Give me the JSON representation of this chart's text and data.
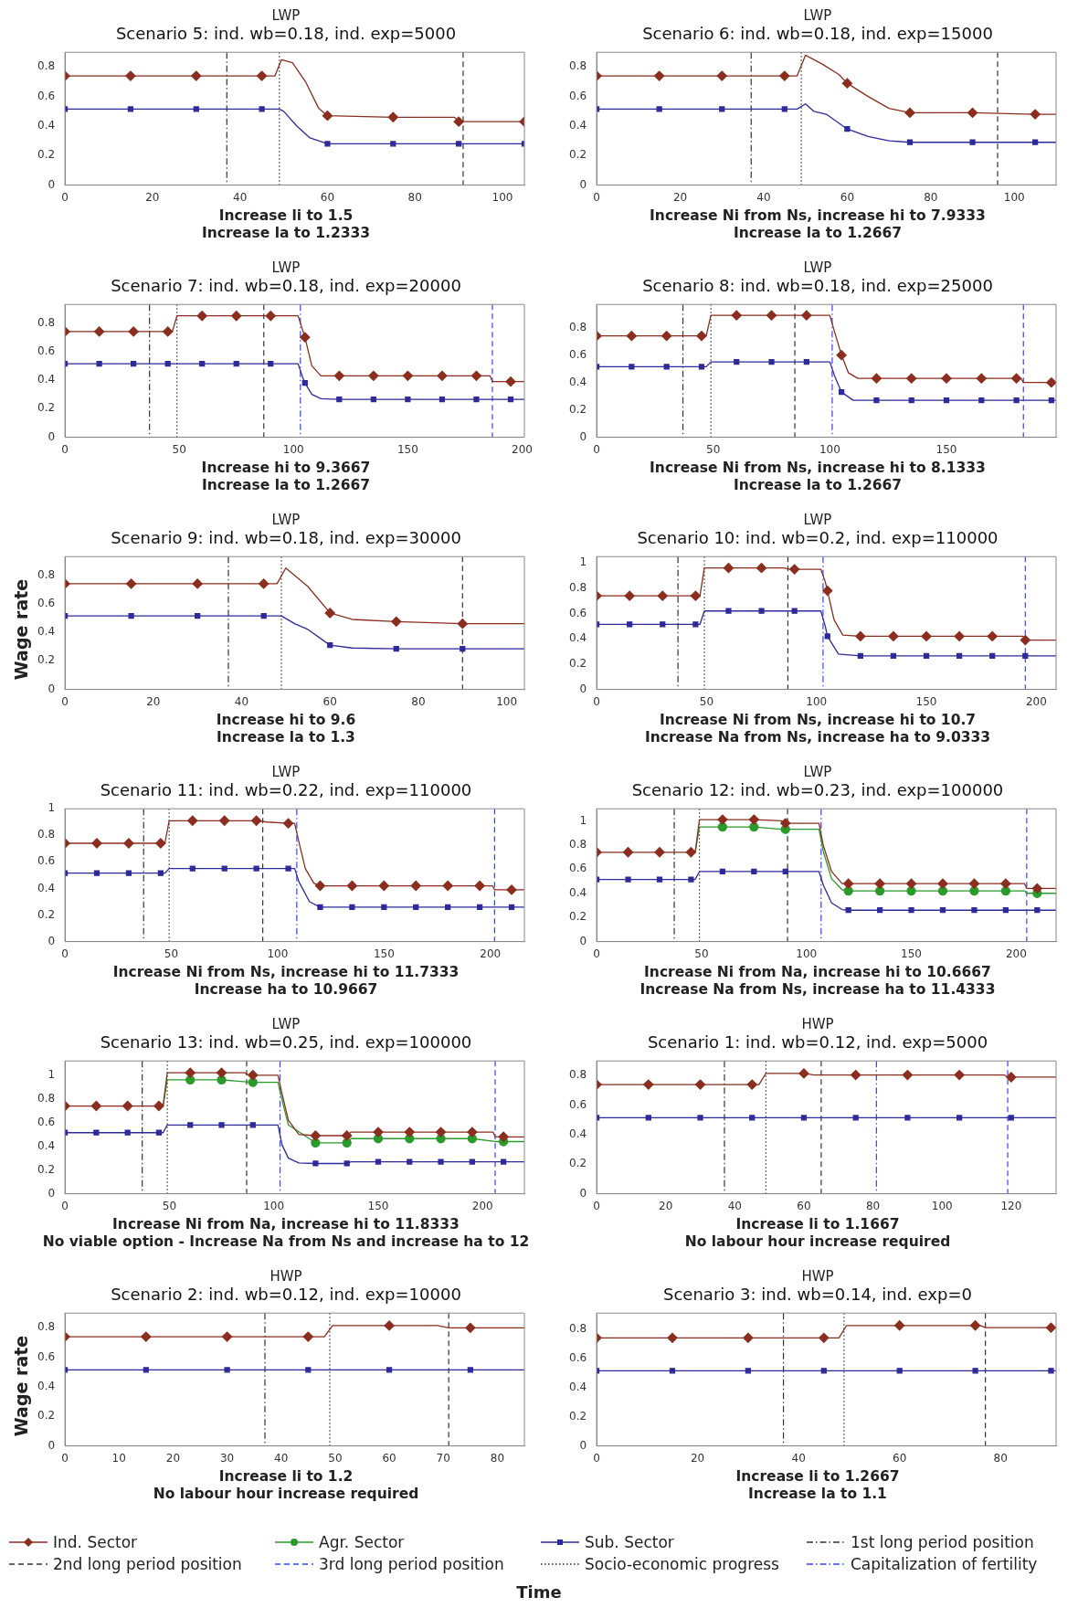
{
  "chart_data": [
    {
      "type": "line",
      "title": "LWP",
      "subtitle": "Scenario 5: ind. wb=0.18, ind. exp=5000",
      "annotations": [
        "Increase li to 1.5",
        "Increase la to 1.2333"
      ],
      "xlim": [
        0,
        105
      ],
      "xticks": [
        0,
        20,
        40,
        60,
        80,
        100
      ],
      "ylim": [
        0,
        0.9
      ],
      "yticks": [
        0,
        0.2,
        0.4,
        0.6,
        0.8
      ],
      "grid": false,
      "legend": "bottom",
      "series": [
        {
          "name": "Ind. Sector",
          "color": "#8b2e1f",
          "marker": "diamond",
          "x": [
            0,
            15,
            30,
            45,
            48,
            49.5,
            52,
            55,
            58,
            60,
            75,
            89,
            90,
            105
          ],
          "values": [
            0.74,
            0.74,
            0.74,
            0.74,
            0.74,
            0.85,
            0.83,
            0.7,
            0.52,
            0.47,
            0.46,
            0.46,
            0.43,
            0.43
          ]
        },
        {
          "name": "Sub. Sector",
          "color": "#2e2a9a",
          "marker": "square",
          "x": [
            0,
            15,
            30,
            45,
            49,
            50,
            53,
            56,
            60,
            75,
            90,
            105
          ],
          "values": [
            0.515,
            0.515,
            0.515,
            0.515,
            0.515,
            0.5,
            0.4,
            0.32,
            0.28,
            0.28,
            0.28,
            0.28
          ]
        }
      ],
      "ref_lines": [
        {
          "axis": "x",
          "value": 37,
          "color": "#333333",
          "line_style": "dashdot"
        },
        {
          "axis": "x",
          "value": 91,
          "color": "#333333",
          "line_style": "dashed"
        },
        {
          "axis": "x",
          "value": 49,
          "color": "#333333",
          "line_style": "dotted"
        }
      ]
    },
    {
      "type": "line",
      "title": "LWP",
      "subtitle": "Scenario 6: ind. wb=0.18, ind. exp=15000",
      "annotations": [
        "Increase Ni from Ns, increase hi to 7.9333",
        "Increase la to 1.2667"
      ],
      "xlim": [
        0,
        110
      ],
      "xticks": [
        0,
        20,
        40,
        60,
        80,
        100
      ],
      "ylim": [
        0,
        0.9
      ],
      "yticks": [
        0,
        0.2,
        0.4,
        0.6,
        0.8
      ],
      "grid": false,
      "series": [
        {
          "name": "Ind. Sector",
          "color": "#8b2e1f",
          "marker": "diamond",
          "x": [
            0,
            15,
            30,
            45,
            48,
            50,
            54,
            58,
            60,
            65,
            70,
            75,
            90,
            105,
            110
          ],
          "values": [
            0.74,
            0.74,
            0.74,
            0.74,
            0.74,
            0.88,
            0.82,
            0.75,
            0.69,
            0.6,
            0.52,
            0.49,
            0.49,
            0.48,
            0.48
          ]
        },
        {
          "name": "Sub. Sector",
          "color": "#2e2a9a",
          "marker": "square",
          "x": [
            0,
            15,
            30,
            45,
            48,
            50,
            52,
            55,
            58,
            60,
            65,
            70,
            75,
            90,
            105,
            110
          ],
          "values": [
            0.515,
            0.515,
            0.515,
            0.515,
            0.515,
            0.55,
            0.5,
            0.48,
            0.42,
            0.38,
            0.33,
            0.3,
            0.29,
            0.29,
            0.29,
            0.29
          ]
        }
      ],
      "ref_lines": [
        {
          "axis": "x",
          "value": 37,
          "color": "#333333",
          "line_style": "dashdot"
        },
        {
          "axis": "x",
          "value": 96,
          "color": "#333333",
          "line_style": "dashed"
        },
        {
          "axis": "x",
          "value": 49,
          "color": "#333333",
          "line_style": "dotted"
        }
      ]
    },
    {
      "type": "line",
      "title": "LWP",
      "subtitle": "Scenario 7: ind. wb=0.18, ind. exp=20000",
      "annotations": [
        "Increase hi to 9.3667",
        "Increase la to 1.2667"
      ],
      "xlim": [
        0,
        201
      ],
      "xticks": [
        0,
        50,
        100,
        150,
        200
      ],
      "ylim": [
        0,
        0.93
      ],
      "yticks": [
        0,
        0.2,
        0.4,
        0.6,
        0.8
      ],
      "grid": false,
      "legend": "bottom",
      "series": [
        {
          "name": "Ind. Sector",
          "color": "#8b2e1f",
          "marker": "diamond",
          "x": [
            0,
            15,
            30,
            45,
            47,
            49,
            60,
            75,
            90,
            102,
            104,
            105,
            108,
            112,
            120,
            135,
            150,
            165,
            180,
            186,
            187,
            195,
            201
          ],
          "values": [
            0.74,
            0.74,
            0.74,
            0.74,
            0.74,
            0.85,
            0.85,
            0.85,
            0.85,
            0.85,
            0.75,
            0.7,
            0.5,
            0.43,
            0.43,
            0.43,
            0.43,
            0.43,
            0.43,
            0.43,
            0.39,
            0.39,
            0.39
          ]
        },
        {
          "name": "Sub. Sector",
          "color": "#2e2a9a",
          "marker": "square",
          "x": [
            0,
            15,
            30,
            45,
            60,
            75,
            90,
            102,
            104,
            105,
            108,
            112,
            120,
            135,
            150,
            165,
            180,
            195,
            201
          ],
          "values": [
            0.515,
            0.515,
            0.515,
            0.515,
            0.515,
            0.515,
            0.515,
            0.515,
            0.42,
            0.38,
            0.3,
            0.27,
            0.265,
            0.265,
            0.265,
            0.265,
            0.265,
            0.265,
            0.265
          ]
        }
      ],
      "ref_lines": [
        {
          "axis": "x",
          "value": 37,
          "label": "1st long period position",
          "color": "#333333",
          "line_style": "dashdot"
        },
        {
          "axis": "x",
          "value": 87,
          "label": "2nd long period position",
          "color": "#333333",
          "line_style": "dashed"
        },
        {
          "axis": "x",
          "value": 187,
          "label": "3rd long period position",
          "color": "#3344ff",
          "line_style": "dashed"
        },
        {
          "axis": "x",
          "value": 49,
          "label": "Socio-economic progress",
          "color": "#333333",
          "line_style": "dotted"
        },
        {
          "axis": "x",
          "value": 103,
          "label": "Capitalization of fertility",
          "color": "#3344ff",
          "line_style": "dashdot"
        }
      ]
    },
    {
      "type": "line",
      "title": "LWP",
      "subtitle": "Scenario 8: ind. wb=0.18, ind. exp=25000",
      "annotations": [
        "Increase Ni from Ns, increase hi to 8.1333",
        "Increase la to 1.2667"
      ],
      "xlim": [
        0,
        197
      ],
      "xticks": [
        0,
        50,
        100,
        150
      ],
      "ylim": [
        0,
        0.97
      ],
      "yticks": [
        0,
        0.2,
        0.4,
        0.6,
        0.8
      ],
      "grid": false,
      "series": [
        {
          "name": "Ind. Sector",
          "color": "#8b2e1f",
          "marker": "diamond",
          "x": [
            0,
            15,
            30,
            45,
            47,
            49,
            60,
            75,
            90,
            100,
            102,
            105,
            108,
            112,
            120,
            135,
            150,
            165,
            180,
            182,
            183,
            195,
            197
          ],
          "values": [
            0.74,
            0.74,
            0.74,
            0.74,
            0.74,
            0.89,
            0.89,
            0.89,
            0.89,
            0.89,
            0.77,
            0.6,
            0.47,
            0.43,
            0.43,
            0.43,
            0.43,
            0.43,
            0.43,
            0.43,
            0.4,
            0.4,
            0.4
          ]
        },
        {
          "name": "Sub. Sector",
          "color": "#2e2a9a",
          "marker": "square",
          "x": [
            0,
            15,
            30,
            45,
            47,
            49,
            60,
            75,
            90,
            100,
            102,
            105,
            110,
            120,
            135,
            150,
            165,
            180,
            195,
            197
          ],
          "values": [
            0.515,
            0.515,
            0.515,
            0.515,
            0.515,
            0.55,
            0.55,
            0.55,
            0.55,
            0.55,
            0.45,
            0.33,
            0.27,
            0.27,
            0.27,
            0.27,
            0.27,
            0.27,
            0.27,
            0.27
          ]
        }
      ],
      "ref_lines": [
        {
          "axis": "x",
          "value": 37,
          "color": "#333333",
          "line_style": "dashdot"
        },
        {
          "axis": "x",
          "value": 85,
          "color": "#333333",
          "line_style": "dashed"
        },
        {
          "axis": "x",
          "value": 183,
          "color": "#3344ff",
          "line_style": "dashed"
        },
        {
          "axis": "x",
          "value": 49,
          "color": "#333333",
          "line_style": "dotted"
        },
        {
          "axis": "x",
          "value": 101,
          "color": "#3344ff",
          "line_style": "dashdot"
        }
      ]
    },
    {
      "type": "line",
      "title": "LWP",
      "subtitle": "Scenario 9: ind. wb=0.18, ind. exp=30000",
      "ylabel": "Wage rate",
      "annotations": [
        "Increase hi to 9.6",
        "Increase la to 1.3"
      ],
      "xlim": [
        0,
        104
      ],
      "xticks": [
        0,
        20,
        40,
        60,
        80,
        100
      ],
      "ylim": [
        0,
        0.93
      ],
      "yticks": [
        0,
        0.2,
        0.4,
        0.6,
        0.8
      ],
      "grid": false,
      "series": [
        {
          "name": "Ind. Sector",
          "color": "#8b2e1f",
          "marker": "diamond",
          "x": [
            0,
            15,
            30,
            45,
            48,
            50,
            55,
            60,
            65,
            75,
            90,
            104
          ],
          "values": [
            0.74,
            0.74,
            0.74,
            0.74,
            0.74,
            0.85,
            0.72,
            0.535,
            0.49,
            0.475,
            0.46,
            0.46
          ]
        },
        {
          "name": "Sub. Sector",
          "color": "#2e2a9a",
          "marker": "square",
          "x": [
            0,
            15,
            30,
            45,
            49,
            52,
            55,
            60,
            65,
            75,
            90,
            104
          ],
          "values": [
            0.515,
            0.515,
            0.515,
            0.515,
            0.515,
            0.46,
            0.42,
            0.31,
            0.29,
            0.285,
            0.285,
            0.285
          ]
        }
      ],
      "ref_lines": [
        {
          "axis": "x",
          "value": 37,
          "color": "#333333",
          "line_style": "dashdot"
        },
        {
          "axis": "x",
          "value": 90,
          "color": "#333333",
          "line_style": "dashed"
        },
        {
          "axis": "x",
          "value": 49,
          "color": "#333333",
          "line_style": "dotted"
        }
      ]
    },
    {
      "type": "line",
      "title": "LWP",
      "subtitle": "Scenario 10: ind. wb=0.2, ind. exp=110000",
      "annotations": [
        "Increase Ni from Ns, increase hi to 10.7",
        "Increase Na from Ns, increase ha to 9.0333"
      ],
      "xlim": [
        0,
        209
      ],
      "xticks": [
        0,
        50,
        100,
        150,
        200
      ],
      "ylim": [
        0,
        1.05
      ],
      "yticks": [
        0,
        0.2,
        0.4,
        0.6,
        0.8,
        1
      ],
      "grid": false,
      "series": [
        {
          "name": "Ind. Sector",
          "color": "#8b2e1f",
          "marker": "diamond",
          "x": [
            0,
            15,
            30,
            45,
            47,
            49,
            60,
            75,
            85,
            88,
            90,
            102,
            104,
            105,
            108,
            112,
            120,
            135,
            150,
            165,
            180,
            194,
            195,
            209
          ],
          "values": [
            0.74,
            0.74,
            0.74,
            0.74,
            0.74,
            0.96,
            0.96,
            0.96,
            0.96,
            0.95,
            0.95,
            0.95,
            0.85,
            0.78,
            0.55,
            0.43,
            0.42,
            0.42,
            0.42,
            0.42,
            0.42,
            0.42,
            0.39,
            0.39
          ]
        },
        {
          "name": "Sub. Sector",
          "color": "#2e2a9a",
          "marker": "square",
          "x": [
            0,
            15,
            30,
            45,
            47,
            49,
            60,
            75,
            90,
            102,
            104,
            105,
            110,
            120,
            135,
            150,
            165,
            180,
            195,
            209
          ],
          "values": [
            0.515,
            0.515,
            0.515,
            0.515,
            0.515,
            0.62,
            0.62,
            0.62,
            0.62,
            0.62,
            0.5,
            0.42,
            0.28,
            0.265,
            0.265,
            0.265,
            0.265,
            0.265,
            0.265,
            0.265
          ]
        }
      ],
      "ref_lines": [
        {
          "axis": "x",
          "value": 37,
          "color": "#333333",
          "line_style": "dashdot"
        },
        {
          "axis": "x",
          "value": 87,
          "color": "#333333",
          "line_style": "dashed"
        },
        {
          "axis": "x",
          "value": 195,
          "color": "#3344ff",
          "line_style": "dashed"
        },
        {
          "axis": "x",
          "value": 49,
          "color": "#333333",
          "line_style": "dotted"
        },
        {
          "axis": "x",
          "value": 103,
          "color": "#3344ff",
          "line_style": "dashdot"
        }
      ]
    },
    {
      "type": "line",
      "title": "LWP",
      "subtitle": "Scenario 11: ind. wb=0.22, ind. exp=110000",
      "annotations": [
        "Increase Ni from Ns, increase hi to 11.7333",
        "Increase ha to 10.9667"
      ],
      "xlim": [
        0,
        216
      ],
      "xticks": [
        0,
        50,
        100,
        150,
        200
      ],
      "ylim": [
        0,
        1
      ],
      "yticks": [
        0,
        0.2,
        0.4,
        0.6,
        0.8,
        1
      ],
      "grid": false,
      "series": [
        {
          "name": "Ind. Sector",
          "color": "#8b2e1f",
          "marker": "diamond",
          "x": [
            0,
            15,
            30,
            45,
            47,
            49,
            60,
            75,
            90,
            95,
            105,
            108,
            110,
            113,
            117,
            120,
            135,
            150,
            165,
            180,
            195,
            201,
            202,
            210,
            216
          ],
          "values": [
            0.74,
            0.74,
            0.74,
            0.74,
            0.74,
            0.91,
            0.91,
            0.91,
            0.91,
            0.9,
            0.89,
            0.89,
            0.75,
            0.55,
            0.44,
            0.42,
            0.42,
            0.42,
            0.42,
            0.42,
            0.42,
            0.42,
            0.39,
            0.39,
            0.39
          ]
        },
        {
          "name": "Sub. Sector",
          "color": "#2e2a9a",
          "marker": "square",
          "x": [
            0,
            15,
            30,
            45,
            47,
            49,
            60,
            75,
            90,
            105,
            108,
            110,
            115,
            120,
            135,
            150,
            165,
            180,
            195,
            210,
            216
          ],
          "values": [
            0.515,
            0.515,
            0.515,
            0.515,
            0.515,
            0.55,
            0.55,
            0.55,
            0.55,
            0.55,
            0.55,
            0.45,
            0.3,
            0.26,
            0.26,
            0.26,
            0.26,
            0.26,
            0.26,
            0.26,
            0.26
          ]
        }
      ],
      "ref_lines": [
        {
          "axis": "x",
          "value": 37,
          "color": "#333333",
          "line_style": "dashdot"
        },
        {
          "axis": "x",
          "value": 93,
          "color": "#333333",
          "line_style": "dashed"
        },
        {
          "axis": "x",
          "value": 202,
          "color": "#3344ff",
          "line_style": "dashed"
        },
        {
          "axis": "x",
          "value": 49,
          "color": "#333333",
          "line_style": "dotted"
        },
        {
          "axis": "x",
          "value": 109,
          "color": "#3344ff",
          "line_style": "dashdot"
        }
      ]
    },
    {
      "type": "line",
      "title": "LWP",
      "subtitle": "Scenario 12: ind. wb=0.23, ind. exp=100000",
      "annotations": [
        "Increase Ni from Na, increase hi to 10.6667",
        "Increase Na from Ns, increase ha to 11.4333"
      ],
      "xlim": [
        0,
        219
      ],
      "xticks": [
        0,
        50,
        100,
        150,
        200
      ],
      "ylim": [
        0,
        1.1
      ],
      "yticks": [
        0,
        0.2,
        0.4,
        0.6,
        0.8,
        1
      ],
      "grid": false,
      "series": [
        {
          "name": "Ind. Sector",
          "color": "#8b2e1f",
          "marker": "diamond",
          "x": [
            0,
            15,
            30,
            45,
            47,
            49,
            60,
            75,
            88,
            90,
            106,
            108,
            112,
            117,
            120,
            135,
            150,
            165,
            180,
            195,
            204,
            205,
            210,
            219
          ],
          "values": [
            0.74,
            0.74,
            0.74,
            0.74,
            0.74,
            1.01,
            1.01,
            1.01,
            1,
            0.98,
            0.98,
            0.8,
            0.58,
            0.48,
            0.48,
            0.48,
            0.48,
            0.48,
            0.48,
            0.48,
            0.48,
            0.44,
            0.44,
            0.44
          ]
        },
        {
          "name": "Agr. Sector",
          "color": "#2a9a2a",
          "marker": "circle",
          "x": [
            47,
            49,
            60,
            75,
            88,
            90,
            106,
            108,
            112,
            117,
            120,
            135,
            150,
            165,
            180,
            195,
            204,
            205,
            210,
            219
          ],
          "values": [
            0.74,
            0.95,
            0.95,
            0.95,
            0.93,
            0.93,
            0.93,
            0.75,
            0.52,
            0.43,
            0.42,
            0.42,
            0.42,
            0.42,
            0.42,
            0.42,
            0.42,
            0.4,
            0.4,
            0.4
          ]
        },
        {
          "name": "Sub. Sector",
          "color": "#2e2a9a",
          "marker": "square",
          "x": [
            0,
            15,
            30,
            45,
            47,
            49,
            60,
            75,
            90,
            106,
            108,
            112,
            117,
            120,
            135,
            150,
            165,
            180,
            195,
            210,
            219
          ],
          "values": [
            0.515,
            0.515,
            0.515,
            0.515,
            0.515,
            0.58,
            0.58,
            0.58,
            0.58,
            0.58,
            0.47,
            0.32,
            0.265,
            0.26,
            0.26,
            0.26,
            0.26,
            0.26,
            0.26,
            0.26,
            0.26
          ]
        }
      ],
      "ref_lines": [
        {
          "axis": "x",
          "value": 37,
          "color": "#333333",
          "line_style": "dashdot"
        },
        {
          "axis": "x",
          "value": 91,
          "color": "#333333",
          "line_style": "dashed"
        },
        {
          "axis": "x",
          "value": 205,
          "color": "#3344ff",
          "line_style": "dashed"
        },
        {
          "axis": "x",
          "value": 49,
          "color": "#333333",
          "line_style": "dotted"
        },
        {
          "axis": "x",
          "value": 107,
          "color": "#3344ff",
          "line_style": "dashdot"
        }
      ]
    },
    {
      "type": "line",
      "title": "LWP",
      "subtitle": "Scenario 13: ind. wb=0.25, ind. exp=100000",
      "annotations": [
        "Increase Ni from Na, increase hi to 11.8333",
        "No viable option - Increase Na from Ns and increase ha to 12"
      ],
      "xlim": [
        0,
        220
      ],
      "xticks": [
        0,
        50,
        100,
        150,
        200
      ],
      "ylim": [
        0,
        1.12
      ],
      "yticks": [
        0,
        0.2,
        0.4,
        0.6,
        0.8,
        1
      ],
      "grid": false,
      "series": [
        {
          "name": "Ind. Sector",
          "color": "#8b2e1f",
          "marker": "diamond",
          "x": [
            0,
            15,
            30,
            45,
            47,
            49,
            60,
            75,
            86,
            88,
            90,
            102,
            104,
            107,
            112,
            120,
            135,
            137,
            150,
            165,
            180,
            195,
            205,
            206,
            210,
            220
          ],
          "values": [
            0.74,
            0.74,
            0.74,
            0.74,
            0.74,
            1.02,
            1.02,
            1.02,
            1.02,
            1,
            1,
            1,
            0.84,
            0.62,
            0.5,
            0.49,
            0.49,
            0.52,
            0.52,
            0.52,
            0.52,
            0.52,
            0.52,
            0.48,
            0.48,
            0.48
          ]
        },
        {
          "name": "Agr. Sector",
          "color": "#2a9a2a",
          "marker": "circle",
          "x": [
            47,
            49,
            60,
            75,
            90,
            102,
            104,
            107,
            120,
            135,
            137,
            150,
            165,
            180,
            195,
            206,
            210,
            220
          ],
          "values": [
            0.74,
            0.96,
            0.96,
            0.96,
            0.94,
            0.94,
            0.79,
            0.58,
            0.43,
            0.43,
            0.465,
            0.465,
            0.465,
            0.465,
            0.465,
            0.44,
            0.44,
            0.44
          ]
        },
        {
          "name": "Sub. Sector",
          "color": "#2e2a9a",
          "marker": "square",
          "x": [
            0,
            15,
            30,
            45,
            47,
            49,
            60,
            75,
            90,
            102,
            104,
            107,
            112,
            120,
            135,
            137,
            150,
            165,
            180,
            195,
            210,
            220
          ],
          "values": [
            0.515,
            0.515,
            0.515,
            0.515,
            0.515,
            0.58,
            0.58,
            0.58,
            0.58,
            0.58,
            0.41,
            0.3,
            0.26,
            0.255,
            0.255,
            0.27,
            0.27,
            0.27,
            0.27,
            0.27,
            0.27,
            0.27
          ]
        }
      ],
      "ref_lines": [
        {
          "axis": "x",
          "value": 37,
          "color": "#333333",
          "line_style": "dashdot"
        },
        {
          "axis": "x",
          "value": 87,
          "color": "#333333",
          "line_style": "dashed"
        },
        {
          "axis": "x",
          "value": 206,
          "color": "#3344ff",
          "line_style": "dashed"
        },
        {
          "axis": "x",
          "value": 49,
          "color": "#333333",
          "line_style": "dotted"
        },
        {
          "axis": "x",
          "value": 103,
          "color": "#3344ff",
          "line_style": "dashdot"
        }
      ]
    },
    {
      "type": "line",
      "title": "HWP",
      "subtitle": "Scenario 1: ind. wb=0.12, ind. exp=5000",
      "annotations": [
        "Increase li to 1.1667",
        "No labour hour increase required"
      ],
      "xlim": [
        0,
        133
      ],
      "xticks": [
        0,
        20,
        40,
        60,
        80,
        100,
        120
      ],
      "ylim": [
        0,
        0.9
      ],
      "yticks": [
        0,
        0.2,
        0.4,
        0.6,
        0.8
      ],
      "grid": false,
      "series": [
        {
          "name": "Ind. Sector",
          "color": "#8b2e1f",
          "marker": "diamond",
          "x": [
            0,
            15,
            30,
            45,
            47,
            49,
            60,
            63,
            75,
            90,
            105,
            118,
            119,
            120,
            133
          ],
          "values": [
            0.74,
            0.74,
            0.74,
            0.74,
            0.74,
            0.815,
            0.815,
            0.805,
            0.805,
            0.805,
            0.805,
            0.805,
            0.79,
            0.79,
            0.79
          ]
        },
        {
          "name": "Sub. Sector",
          "color": "#2e2a9a",
          "marker": "square",
          "x": [
            0,
            15,
            30,
            45,
            60,
            75,
            90,
            105,
            120,
            133
          ],
          "values": [
            0.515,
            0.515,
            0.515,
            0.515,
            0.515,
            0.515,
            0.515,
            0.515,
            0.515,
            0.515
          ]
        }
      ],
      "ref_lines": [
        {
          "axis": "x",
          "value": 37,
          "color": "#333333",
          "line_style": "dashdot"
        },
        {
          "axis": "x",
          "value": 65,
          "color": "#333333",
          "line_style": "dashed"
        },
        {
          "axis": "x",
          "value": 119,
          "color": "#3344ff",
          "line_style": "dashed"
        },
        {
          "axis": "x",
          "value": 49,
          "color": "#333333",
          "line_style": "dotted"
        },
        {
          "axis": "x",
          "value": 81,
          "color": "#3344ff",
          "line_style": "dashdot"
        }
      ]
    },
    {
      "type": "line",
      "title": "HWP",
      "subtitle": "Scenario 2: ind. wb=0.12, ind. exp=10000",
      "ylabel": "Wage rate",
      "annotations": [
        "Increase li to 1.2",
        "No labour hour increase required"
      ],
      "xlim": [
        0,
        85
      ],
      "xticks": [
        0,
        10,
        20,
        30,
        40,
        50,
        60,
        70,
        80
      ],
      "ylim": [
        0,
        0.9
      ],
      "yticks": [
        0,
        0.2,
        0.4,
        0.6,
        0.8
      ],
      "grid": false,
      "series": [
        {
          "name": "Ind. Sector",
          "color": "#8b2e1f",
          "marker": "diamond",
          "x": [
            0,
            15,
            30,
            45,
            48,
            49.5,
            60,
            69,
            71,
            75,
            85
          ],
          "values": [
            0.74,
            0.74,
            0.74,
            0.74,
            0.74,
            0.815,
            0.815,
            0.815,
            0.8,
            0.8,
            0.8
          ]
        },
        {
          "name": "Sub. Sector",
          "color": "#2e2a9a",
          "marker": "square",
          "x": [
            0,
            15,
            30,
            45,
            60,
            75,
            85
          ],
          "values": [
            0.515,
            0.515,
            0.515,
            0.515,
            0.515,
            0.515,
            0.515
          ]
        }
      ],
      "ref_lines": [
        {
          "axis": "x",
          "value": 37,
          "color": "#333333",
          "line_style": "dashdot"
        },
        {
          "axis": "x",
          "value": 71,
          "color": "#333333",
          "line_style": "dashed"
        },
        {
          "axis": "x",
          "value": 49,
          "color": "#333333",
          "line_style": "dotted"
        }
      ]
    },
    {
      "type": "line",
      "title": "HWP",
      "subtitle": "Scenario 3: ind. wb=0.14, ind. exp=0",
      "xlabel": "Time",
      "annotations": [
        "Increase li to 1.2667",
        "Increase la to 1.1"
      ],
      "xlim": [
        0,
        91
      ],
      "xticks": [
        0,
        20,
        40,
        60,
        80
      ],
      "ylim": [
        0,
        0.91
      ],
      "yticks": [
        0,
        0.2,
        0.4,
        0.6,
        0.8
      ],
      "grid": false,
      "series": [
        {
          "name": "Ind. Sector",
          "color": "#8b2e1f",
          "marker": "diamond",
          "x": [
            0,
            15,
            30,
            45,
            48,
            49.5,
            60,
            75,
            76,
            77,
            90,
            91
          ],
          "values": [
            0.74,
            0.74,
            0.74,
            0.74,
            0.74,
            0.825,
            0.825,
            0.825,
            0.825,
            0.81,
            0.81,
            0.81
          ]
        },
        {
          "name": "Sub. Sector",
          "color": "#2e2a9a",
          "marker": "square",
          "x": [
            0,
            15,
            30,
            45,
            60,
            75,
            90,
            91
          ],
          "values": [
            0.515,
            0.515,
            0.515,
            0.515,
            0.515,
            0.515,
            0.515,
            0.515
          ]
        }
      ],
      "ref_lines": [
        {
          "axis": "x",
          "value": 37,
          "color": "#333333",
          "line_style": "dashdot"
        },
        {
          "axis": "x",
          "value": 77,
          "color": "#333333",
          "line_style": "dashed"
        },
        {
          "axis": "x",
          "value": 49,
          "color": "#333333",
          "line_style": "dotted"
        }
      ]
    }
  ]
}
